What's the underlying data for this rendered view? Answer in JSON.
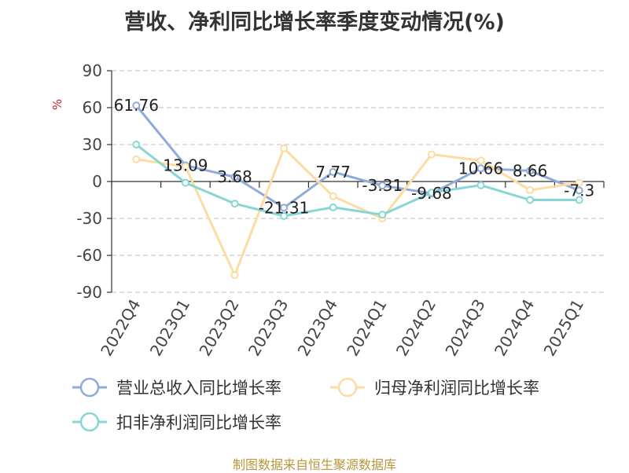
{
  "title": "营收、净利同比增长率季度变动情况(%)",
  "source": "制图数据来自恒生聚源数据库",
  "chart_data": {
    "type": "line",
    "title": "营收、净利同比增长率季度变动情况(%)",
    "ylabel": "%",
    "ylim": [
      -90,
      90
    ],
    "yticks": [
      90,
      60,
      30,
      0,
      -30,
      -60,
      -90
    ],
    "grid": true,
    "legend_position": "bottom",
    "categories": [
      "2022Q4",
      "2023Q1",
      "2023Q2",
      "2023Q3",
      "2023Q4",
      "2024Q1",
      "2024Q2",
      "2024Q3",
      "2024Q4",
      "2025Q1"
    ],
    "series": [
      {
        "name": "营业总收入同比增长率",
        "color": "#8fabd9",
        "values": [
          61.76,
          13.09,
          3.68,
          -21.31,
          7.77,
          -3.31,
          -9.68,
          10.66,
          8.66,
          -7.3
        ],
        "labels": [
          "61.76",
          "13.09",
          "3.68",
          "-21.31",
          "7.77",
          "-3.31",
          "-9.68",
          "10.66",
          "8.66",
          "-7.3"
        ]
      },
      {
        "name": "归母净利润同比增长率",
        "color": "#fcdca3",
        "values": [
          18,
          12,
          -76,
          27,
          -12,
          -30,
          22,
          17,
          -7,
          -1
        ]
      },
      {
        "name": "扣非净利润同比增长率",
        "color": "#86d6d6",
        "values": [
          30,
          -1,
          -18,
          -28,
          -21,
          -27,
          -9,
          -3,
          -15,
          -15
        ]
      }
    ]
  }
}
